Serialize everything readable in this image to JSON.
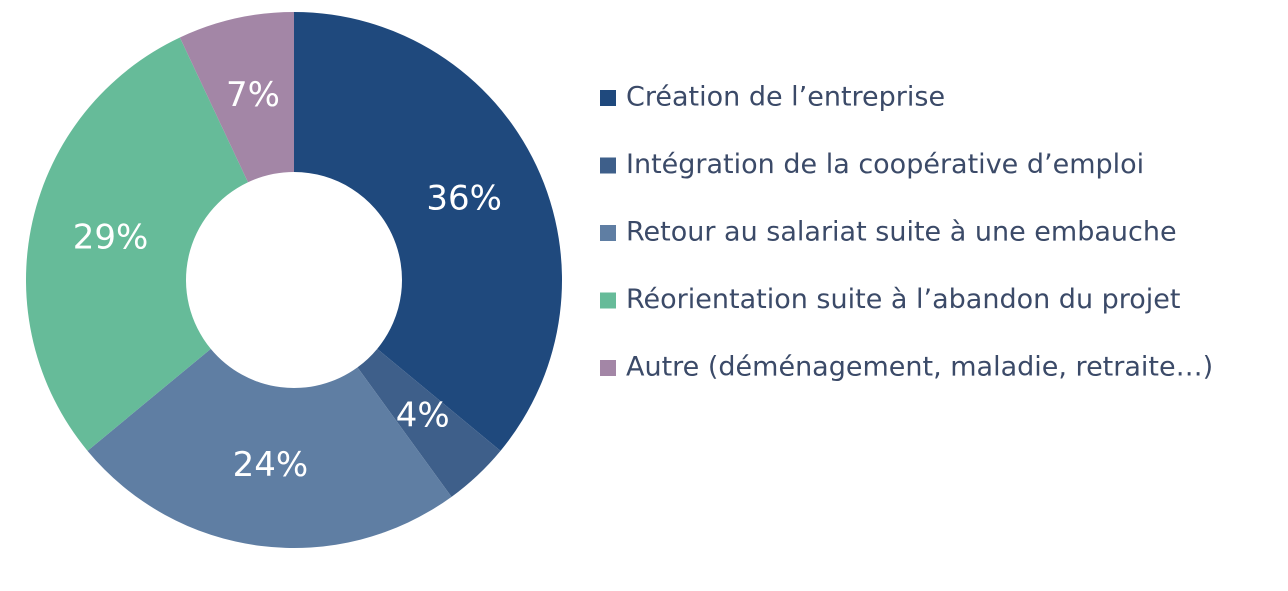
{
  "chart_data": {
    "type": "donut",
    "categories": [
      "Création de l’entreprise",
      "Intégration de la coopérative d’emploi",
      "Retour au salariat suite à une embauche",
      "Réorientation suite à l’abandon du projet",
      "Autre (déménagement, maladie, retraite…)"
    ],
    "values": [
      36,
      4,
      24,
      29,
      7
    ],
    "value_labels": [
      "36%",
      "4%",
      "24%",
      "29%",
      "7%"
    ],
    "colors": [
      "#1f497d",
      "#3e5f8a",
      "#5f7ea3",
      "#66bb99",
      "#a386a6"
    ],
    "legend": "right"
  }
}
